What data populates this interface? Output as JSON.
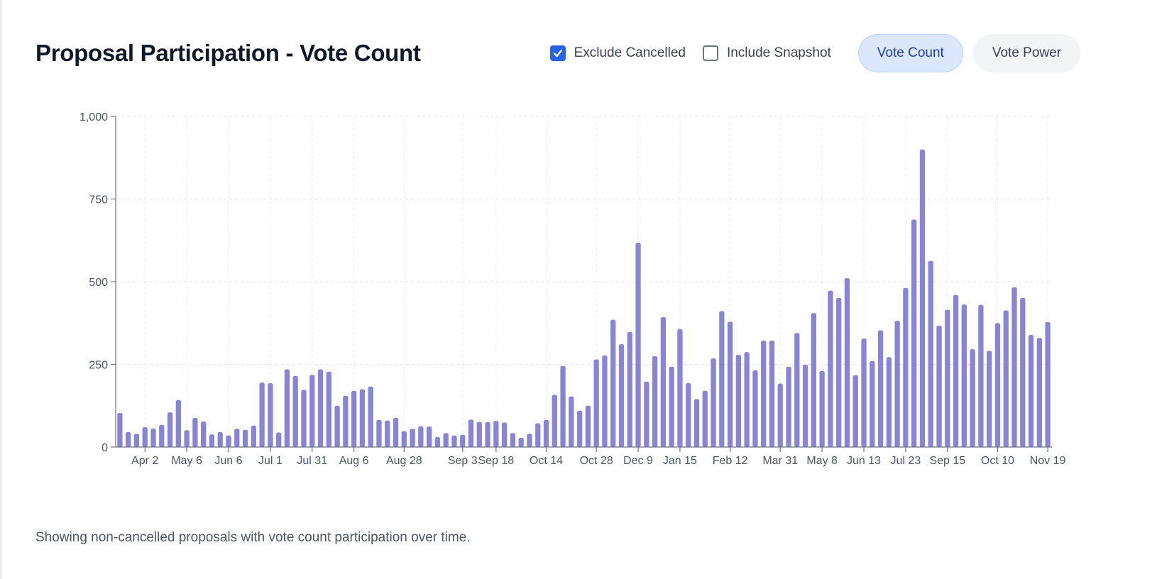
{
  "header": {
    "title": "Proposal Participation - Vote Count",
    "filters": [
      {
        "label": "Exclude Cancelled",
        "checked": true
      },
      {
        "label": "Include Snapshot",
        "checked": false
      }
    ],
    "toggle": [
      {
        "label": "Vote Count",
        "active": true
      },
      {
        "label": "Vote Power",
        "active": false
      }
    ]
  },
  "caption": "Showing non-cancelled proposals with vote count participation over time.",
  "colors": {
    "bar": "#8884d8",
    "accent": "#2563eb",
    "active_pill_bg": "#dbe7fb",
    "active_pill_text": "#1e40af"
  },
  "chart_data": {
    "type": "bar",
    "title": "Proposal Participation - Vote Count",
    "xlabel": "",
    "ylabel": "",
    "ylim": [
      0,
      1000
    ],
    "yticks": [
      0,
      250,
      500,
      750,
      1000
    ],
    "ytick_labels": [
      "0",
      "250",
      "500",
      "750",
      "1,000"
    ],
    "grid": true,
    "legend": "none",
    "xtick_labels": [
      {
        "index": 3,
        "label": "Apr 2"
      },
      {
        "index": 8,
        "label": "May 6"
      },
      {
        "index": 13,
        "label": "Jun 6"
      },
      {
        "index": 18,
        "label": "Jul 1"
      },
      {
        "index": 23,
        "label": "Jul 31"
      },
      {
        "index": 28,
        "label": "Aug 6"
      },
      {
        "index": 34,
        "label": "Aug 28"
      },
      {
        "index": 41,
        "label": "Sep 3"
      },
      {
        "index": 45,
        "label": "Sep 18"
      },
      {
        "index": 51,
        "label": "Oct 14"
      },
      {
        "index": 57,
        "label": "Oct 28"
      },
      {
        "index": 62,
        "label": "Dec 9"
      },
      {
        "index": 67,
        "label": "Jan 15"
      },
      {
        "index": 73,
        "label": "Feb 12"
      },
      {
        "index": 79,
        "label": "Mar 31"
      },
      {
        "index": 84,
        "label": "May 8"
      },
      {
        "index": 89,
        "label": "Jun 13"
      },
      {
        "index": 94,
        "label": "Jul 23"
      },
      {
        "index": 99,
        "label": "Sep 15"
      },
      {
        "index": 105,
        "label": "Oct 10"
      },
      {
        "index": 111,
        "label": "Nov 19"
      }
    ],
    "values": [
      103,
      45,
      40,
      60,
      56,
      67,
      105,
      142,
      51,
      88,
      77,
      38,
      45,
      35,
      55,
      52,
      65,
      195,
      193,
      44,
      235,
      215,
      173,
      218,
      235,
      228,
      125,
      155,
      170,
      175,
      183,
      82,
      80,
      88,
      48,
      55,
      63,
      62,
      30,
      42,
      35,
      37,
      83,
      76,
      75,
      79,
      74,
      42,
      28,
      40,
      72,
      82,
      158,
      245,
      153,
      110,
      125,
      265,
      277,
      385,
      311,
      348,
      618,
      198,
      275,
      393,
      243,
      357,
      193,
      145,
      170,
      268,
      411,
      379,
      279,
      287,
      232,
      322,
      322,
      192,
      243,
      345,
      249,
      405,
      230,
      473,
      451,
      511,
      217,
      328,
      260,
      353,
      272,
      382,
      481,
      688,
      900,
      563,
      367,
      415,
      460,
      431,
      296,
      430,
      291,
      375,
      413,
      483,
      451,
      339,
      330,
      378
    ]
  }
}
